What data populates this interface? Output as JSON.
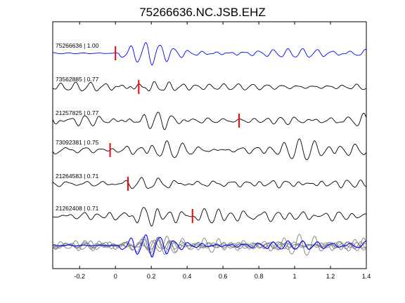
{
  "chart_data": {
    "type": "line",
    "title": "75266636.NC.JSB.EHZ",
    "xlabel": "",
    "ylabel": "",
    "xlim": [
      -0.35,
      1.4
    ],
    "xticks": [
      -0.2,
      0,
      0.2,
      0.4,
      0.6,
      0.8,
      1,
      1.2,
      1.4
    ],
    "xtick_labels": [
      "-0.2",
      "0",
      "0.2",
      "0.4",
      "0.6",
      "0.8",
      "1",
      "1.2",
      "1.4"
    ],
    "grid": false,
    "legend": "none",
    "series": [
      {
        "label": "75266636 | 1.00",
        "event_id": "75266636",
        "correlation": 1.0,
        "pick_time": 0.0,
        "color": "#0000ff",
        "seed": 1
      },
      {
        "label": "73562885 | 0.77",
        "event_id": "73562885",
        "correlation": 0.77,
        "pick_time": 0.13,
        "color": "#000000",
        "seed": 2
      },
      {
        "label": "21257825 | 0.77",
        "event_id": "21257825",
        "correlation": 0.77,
        "pick_time": 0.69,
        "color": "#000000",
        "seed": 3
      },
      {
        "label": "73092381 | 0.75",
        "event_id": "73092381",
        "correlation": 0.75,
        "pick_time": -0.03,
        "color": "#000000",
        "seed": 4
      },
      {
        "label": "21264583 | 0.71",
        "event_id": "21264583",
        "correlation": 0.71,
        "pick_time": 0.07,
        "color": "#000000",
        "seed": 5
      },
      {
        "label": "21262408 | 0.71",
        "event_id": "21262408",
        "correlation": 0.71,
        "pick_time": 0.43,
        "color": "#000000",
        "seed": 6
      }
    ],
    "stack": {
      "description_colors": {
        "reference": "#0000ff",
        "others": "#808080"
      }
    },
    "pick_color": "#ff0000"
  }
}
